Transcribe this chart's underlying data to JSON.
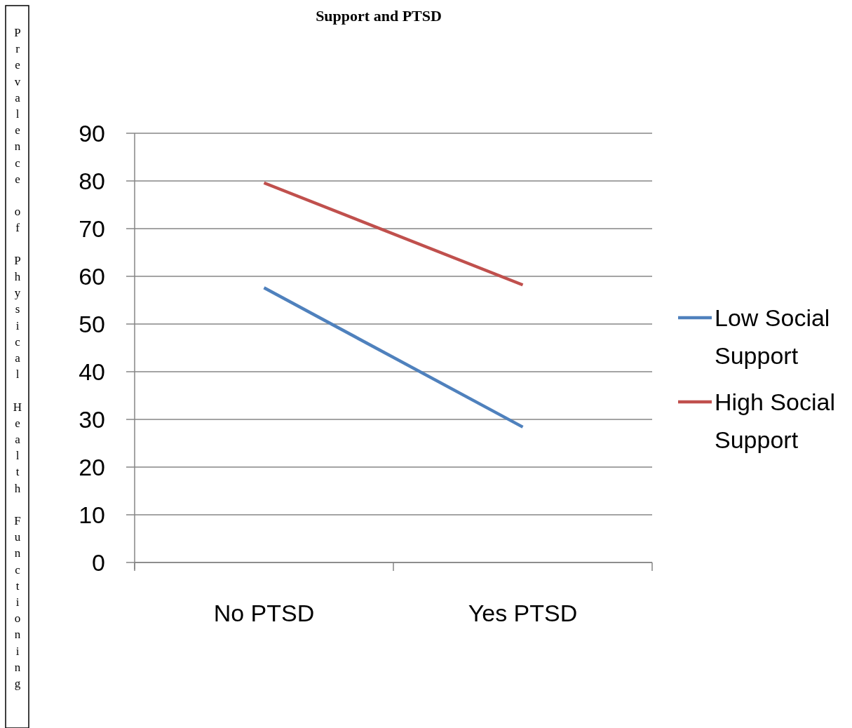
{
  "chart_data": {
    "type": "line",
    "title": "Support and PTSD",
    "ylabel": "Prevalence of Physical Health Functioning",
    "categories": [
      "No PTSD",
      "Yes PTSD"
    ],
    "series": [
      {
        "name": "Low Social Support",
        "color": "#4f81bd",
        "values": [
          57.6,
          28.4
        ]
      },
      {
        "name": "High Social Support",
        "color": "#c0504d",
        "values": [
          79.6,
          58.2
        ]
      }
    ],
    "ylim": [
      0,
      90
    ],
    "yticks": [
      0,
      10,
      20,
      30,
      40,
      50,
      60,
      70,
      80,
      90
    ],
    "grid": "y",
    "legend": "right",
    "marker": "none"
  }
}
